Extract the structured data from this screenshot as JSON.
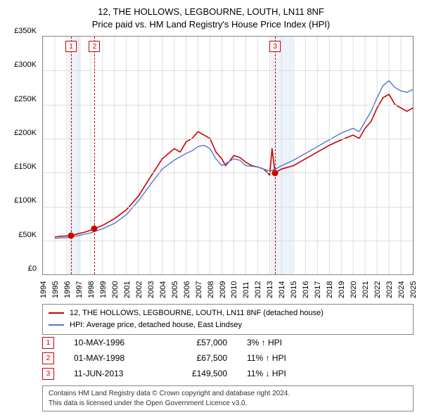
{
  "title": {
    "line1": "12, THE HOLLOWS, LEGBOURNE, LOUTH, LN11 8NF",
    "line2": "Price paid vs. HM Land Registry's House Price Index (HPI)"
  },
  "chart": {
    "type": "line",
    "background_color": "#ffffff",
    "border_color": "#888888",
    "grid_color": "#dddddd",
    "xlim": [
      1994,
      2025
    ],
    "ylim": [
      0,
      350000
    ],
    "ytick_step": 50000,
    "yticks": [
      "£0",
      "£50K",
      "£100K",
      "£150K",
      "£200K",
      "£250K",
      "£300K",
      "£350K"
    ],
    "xticks": [
      1994,
      1995,
      1996,
      1997,
      1998,
      1999,
      2000,
      2001,
      2002,
      2003,
      2004,
      2005,
      2006,
      2007,
      2008,
      2009,
      2010,
      2011,
      2012,
      2013,
      2014,
      2015,
      2016,
      2017,
      2018,
      2019,
      2020,
      2021,
      2022,
      2023,
      2024,
      2025
    ],
    "blue_bands": [
      {
        "start": 1996.1,
        "end": 1997.2
      },
      {
        "start": 2013.1,
        "end": 2014.9
      }
    ],
    "marker_line_color": "#cc0000",
    "marker_box_border": "#cc0000",
    "markers": [
      {
        "n": "1",
        "year": 1996.36,
        "value": 57000
      },
      {
        "n": "2",
        "year": 1998.33,
        "value": 67500
      },
      {
        "n": "3",
        "year": 2013.45,
        "value": 149500
      }
    ],
    "series": [
      {
        "name": "12, THE HOLLOWS, LEGBOURNE, LOUTH, LN11 8NF (detached house)",
        "color": "#cc0000",
        "width": 1.6,
        "points": [
          [
            1995.0,
            55000
          ],
          [
            1995.5,
            56000
          ],
          [
            1996.0,
            56500
          ],
          [
            1996.36,
            57000
          ],
          [
            1997.0,
            60000
          ],
          [
            1997.5,
            62000
          ],
          [
            1998.0,
            65000
          ],
          [
            1998.33,
            67500
          ],
          [
            1999.0,
            72000
          ],
          [
            2000.0,
            82000
          ],
          [
            2001.0,
            95000
          ],
          [
            2002.0,
            115000
          ],
          [
            2003.0,
            143000
          ],
          [
            2004.0,
            170000
          ],
          [
            2005.0,
            185000
          ],
          [
            2005.5,
            180000
          ],
          [
            2006.0,
            195000
          ],
          [
            2006.5,
            200000
          ],
          [
            2007.0,
            210000
          ],
          [
            2007.5,
            205000
          ],
          [
            2008.0,
            200000
          ],
          [
            2008.5,
            180000
          ],
          [
            2009.0,
            170000
          ],
          [
            2009.3,
            160000
          ],
          [
            2009.7,
            168000
          ],
          [
            2010.0,
            175000
          ],
          [
            2010.5,
            172000
          ],
          [
            2011.0,
            165000
          ],
          [
            2011.5,
            160000
          ],
          [
            2012.0,
            158000
          ],
          [
            2012.5,
            155000
          ],
          [
            2012.8,
            150000
          ],
          [
            2013.0,
            146000
          ],
          [
            2013.2,
            185000
          ],
          [
            2013.45,
            149500
          ],
          [
            2014.0,
            155000
          ],
          [
            2015.0,
            160000
          ],
          [
            2016.0,
            170000
          ],
          [
            2017.0,
            180000
          ],
          [
            2018.0,
            190000
          ],
          [
            2019.0,
            198000
          ],
          [
            2020.0,
            205000
          ],
          [
            2020.5,
            200000
          ],
          [
            2021.0,
            215000
          ],
          [
            2021.5,
            225000
          ],
          [
            2022.0,
            245000
          ],
          [
            2022.5,
            260000
          ],
          [
            2023.0,
            265000
          ],
          [
            2023.5,
            250000
          ],
          [
            2024.0,
            245000
          ],
          [
            2024.5,
            240000
          ],
          [
            2025.0,
            245000
          ]
        ]
      },
      {
        "name": "HPI: Average price, detached house, East Lindsey",
        "color": "#5577cc",
        "width": 1.4,
        "points": [
          [
            1995.0,
            53000
          ],
          [
            1996.0,
            54000
          ],
          [
            1997.0,
            57000
          ],
          [
            1998.0,
            61000
          ],
          [
            1999.0,
            67000
          ],
          [
            2000.0,
            75000
          ],
          [
            2001.0,
            88000
          ],
          [
            2002.0,
            108000
          ],
          [
            2003.0,
            132000
          ],
          [
            2004.0,
            155000
          ],
          [
            2005.0,
            168000
          ],
          [
            2006.0,
            178000
          ],
          [
            2006.5,
            182000
          ],
          [
            2007.0,
            188000
          ],
          [
            2007.5,
            190000
          ],
          [
            2008.0,
            185000
          ],
          [
            2008.5,
            170000
          ],
          [
            2009.0,
            160000
          ],
          [
            2009.5,
            165000
          ],
          [
            2010.0,
            170000
          ],
          [
            2010.5,
            168000
          ],
          [
            2011.0,
            160000
          ],
          [
            2012.0,
            158000
          ],
          [
            2012.5,
            155000
          ],
          [
            2013.0,
            152000
          ],
          [
            2013.5,
            155000
          ],
          [
            2014.0,
            160000
          ],
          [
            2015.0,
            168000
          ],
          [
            2016.0,
            178000
          ],
          [
            2017.0,
            188000
          ],
          [
            2018.0,
            198000
          ],
          [
            2019.0,
            208000
          ],
          [
            2020.0,
            215000
          ],
          [
            2020.5,
            210000
          ],
          [
            2021.0,
            225000
          ],
          [
            2021.5,
            240000
          ],
          [
            2022.0,
            260000
          ],
          [
            2022.5,
            278000
          ],
          [
            2023.0,
            285000
          ],
          [
            2023.5,
            275000
          ],
          [
            2024.0,
            270000
          ],
          [
            2024.5,
            268000
          ],
          [
            2025.0,
            272000
          ]
        ]
      }
    ]
  },
  "legend": {
    "items": [
      {
        "color": "#cc0000",
        "label": "12, THE HOLLOWS, LEGBOURNE, LOUTH, LN11 8NF (detached house)"
      },
      {
        "color": "#5577cc",
        "label": "HPI: Average price, detached house, East Lindsey"
      }
    ]
  },
  "events": [
    {
      "n": "1",
      "date": "10-MAY-1996",
      "price": "£57,000",
      "pct": "3% ↑ HPI"
    },
    {
      "n": "2",
      "date": "01-MAY-1998",
      "price": "£67,500",
      "pct": "11% ↑ HPI"
    },
    {
      "n": "3",
      "date": "11-JUN-2013",
      "price": "£149,500",
      "pct": "11% ↓ HPI"
    }
  ],
  "disclaimer": {
    "line1": "Contains HM Land Registry data © Crown copyright and database right 2024.",
    "line2": "This data is licensed under the Open Government Licence v3.0."
  },
  "fonts": {
    "title_size": 13,
    "axis_label_size": 11,
    "legend_size": 11,
    "event_size": 12,
    "disclaimer_size": 10
  }
}
